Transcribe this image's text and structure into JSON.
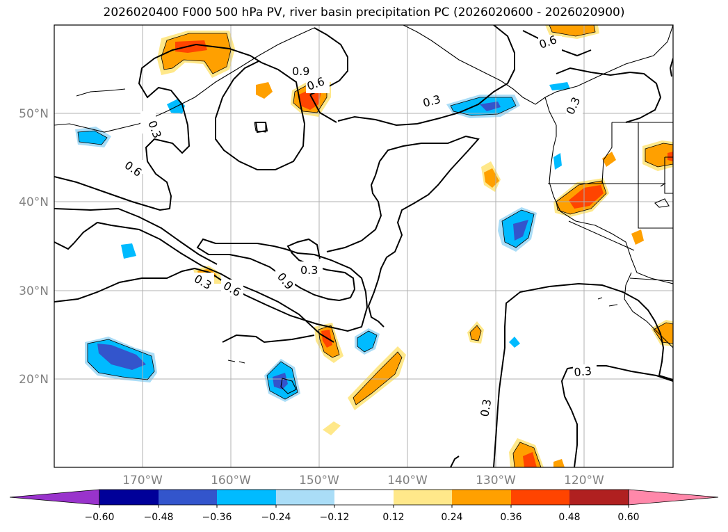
{
  "title": "2026020400 F000 500 hPa PV, river basin precipitation PC (2026020600 - 2026020900)",
  "lat_labels": [
    "50°N",
    "40°N",
    "30°N",
    "20°N"
  ],
  "lon_labels": [
    "170°W",
    "160°W",
    "150°W",
    "140°W",
    "130°W",
    "120°W"
  ],
  "contour_labels": [
    "0.3",
    "0.6",
    "0.9",
    "0.3",
    "0.6",
    "0.9",
    "0.3",
    "0.3",
    "0.6",
    "0.3",
    "0.6",
    "0.3",
    "0.3"
  ],
  "colorbar": {
    "tick_labels": [
      "−0.60",
      "−0.48",
      "−0.36",
      "−0.24",
      "−0.12",
      "0.12",
      "0.24",
      "0.36",
      "0.48",
      "0.60"
    ],
    "colors": [
      "#9933cc",
      "#000099",
      "#3355cc",
      "#00bbff",
      "#aaddf7",
      "#ffffff",
      "#ffe88a",
      "#ffa000",
      "#ff4400",
      "#b02020",
      "#ff88aa"
    ]
  },
  "colors": {
    "contour": "#000000",
    "neg_light": "#aaddf7",
    "neg_mid": "#00bbff",
    "neg_strong": "#3355cc",
    "pos_light": "#ffe88a",
    "pos_mid": "#ffa000",
    "pos_strong": "#ff4400",
    "grid": "#b0b0b0"
  }
}
